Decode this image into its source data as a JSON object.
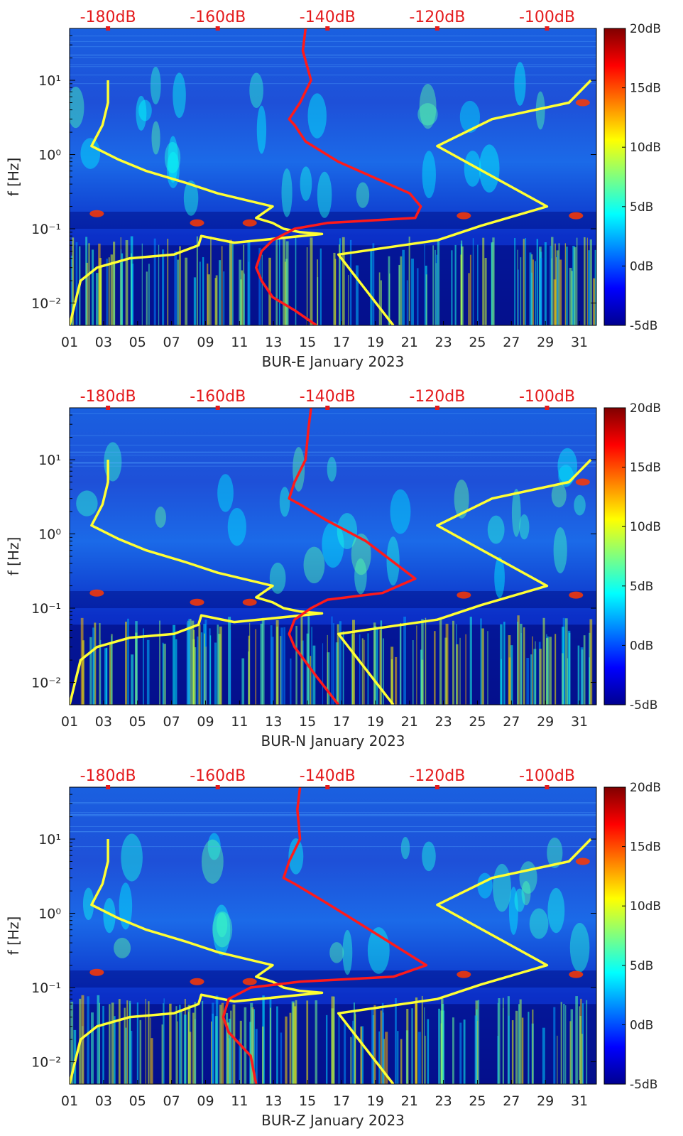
{
  "chart_data": [
    {
      "type": "heatmap",
      "xlabel": "BUR-E January 2023",
      "ylabel": "f [Hz]",
      "x_ticks": [
        "01",
        "03",
        "05",
        "07",
        "09",
        "11",
        "13",
        "15",
        "17",
        "19",
        "21",
        "23",
        "25",
        "27",
        "29",
        "31"
      ],
      "y_ticks": [
        "10⁻²",
        "10⁻¹",
        "10⁰",
        "10¹"
      ],
      "y_scale": "log",
      "x_range": [
        1,
        32
      ],
      "y_range": [
        0.005,
        50
      ],
      "top_axis_ticks": [
        "-180dB",
        "-160dB",
        "-140dB",
        "-120dB",
        "-100dB"
      ],
      "top_axis_range_db": [
        -187,
        -91
      ],
      "colorbar": {
        "ticks": [
          "-5dB",
          "0dB",
          "5dB",
          "10dB",
          "15dB",
          "20dB"
        ],
        "range_db": [
          -5,
          20
        ],
        "colormap": "jet"
      },
      "series": [
        {
          "color": "#ffff33",
          "x_db": [
            -180,
            -180,
            -181,
            -183,
            -178,
            -173,
            -166,
            -160,
            -150,
            -153,
            -150,
            -148,
            -145,
            -141,
            -157,
            -163,
            -163.5,
            -168,
            -176,
            -182,
            -185,
            -186,
            -187
          ],
          "y_hz": [
            10,
            5,
            2.5,
            1.3,
            0.85,
            0.6,
            0.42,
            0.3,
            0.2,
            0.14,
            0.12,
            0.1,
            0.09,
            0.085,
            0.065,
            0.08,
            0.06,
            0.045,
            0.04,
            0.03,
            0.02,
            0.01,
            0.005
          ]
        },
        {
          "color": "#ffff33",
          "x_db": [
            -92,
            -96,
            -110,
            -120,
            -100,
            -112,
            -120,
            -138,
            -128
          ],
          "y_hz": [
            10,
            5,
            3,
            1.3,
            0.2,
            0.11,
            0.07,
            0.045,
            0.005
          ]
        },
        {
          "color": "#ff1a1a",
          "x_db": [
            -144,
            -144.5,
            -143,
            -145,
            -147,
            -146,
            -144,
            -138,
            -125,
            -123,
            -124,
            -140,
            -146,
            -150,
            -152,
            -153,
            -152,
            -150,
            -146,
            -142
          ],
          "y_hz": [
            50,
            25,
            10,
            5,
            3,
            2.5,
            1.5,
            0.8,
            0.3,
            0.2,
            0.14,
            0.12,
            0.1,
            0.07,
            0.05,
            0.03,
            0.02,
            0.012,
            0.008,
            0.005
          ]
        }
      ]
    },
    {
      "type": "heatmap",
      "xlabel": "BUR-N January 2023",
      "ylabel": "f [Hz]",
      "x_ticks": [
        "01",
        "03",
        "05",
        "07",
        "09",
        "11",
        "13",
        "15",
        "17",
        "19",
        "21",
        "23",
        "25",
        "27",
        "29",
        "31"
      ],
      "y_ticks": [
        "10⁻²",
        "10⁻¹",
        "10⁰",
        "10¹"
      ],
      "y_scale": "log",
      "x_range": [
        1,
        32
      ],
      "y_range": [
        0.005,
        50
      ],
      "top_axis_ticks": [
        "-180dB",
        "-160dB",
        "-140dB",
        "-120dB",
        "-100dB"
      ],
      "top_axis_range_db": [
        -187,
        -91
      ],
      "colorbar": {
        "ticks": [
          "-5dB",
          "0dB",
          "5dB",
          "10dB",
          "15dB",
          "20dB"
        ],
        "range_db": [
          -5,
          20
        ],
        "colormap": "jet"
      },
      "series": [
        {
          "color": "#ffff33",
          "x_db": [
            -180,
            -180,
            -181,
            -183,
            -178,
            -173,
            -166,
            -160,
            -150,
            -153,
            -150,
            -148,
            -145,
            -141,
            -157,
            -163,
            -163.5,
            -168,
            -176,
            -182,
            -185,
            -186,
            -187
          ],
          "y_hz": [
            10,
            5,
            2.5,
            1.3,
            0.85,
            0.6,
            0.42,
            0.3,
            0.2,
            0.14,
            0.12,
            0.1,
            0.09,
            0.085,
            0.065,
            0.08,
            0.06,
            0.045,
            0.04,
            0.03,
            0.02,
            0.01,
            0.005
          ]
        },
        {
          "color": "#ffff33",
          "x_db": [
            -92,
            -96,
            -110,
            -120,
            -100,
            -112,
            -120,
            -138,
            -128
          ],
          "y_hz": [
            10,
            5,
            3,
            1.3,
            0.2,
            0.11,
            0.07,
            0.045,
            0.005
          ]
        },
        {
          "color": "#ff1a1a",
          "x_db": [
            -143,
            -143.5,
            -144,
            -146,
            -147,
            -145,
            -140,
            -133,
            -124,
            -130,
            -140,
            -143,
            -146,
            -147,
            -146,
            -142,
            -138
          ],
          "y_hz": [
            50,
            25,
            10,
            5,
            3,
            2.5,
            1.5,
            0.8,
            0.25,
            0.16,
            0.13,
            0.1,
            0.07,
            0.045,
            0.03,
            0.012,
            0.005
          ]
        }
      ]
    },
    {
      "type": "heatmap",
      "xlabel": "BUR-Z January 2023",
      "ylabel": "f [Hz]",
      "x_ticks": [
        "01",
        "03",
        "05",
        "07",
        "09",
        "11",
        "13",
        "15",
        "17",
        "19",
        "21",
        "23",
        "25",
        "27",
        "29",
        "31"
      ],
      "y_ticks": [
        "10⁻²",
        "10⁻¹",
        "10⁰",
        "10¹"
      ],
      "y_scale": "log",
      "x_range": [
        1,
        32
      ],
      "y_range": [
        0.005,
        50
      ],
      "top_axis_ticks": [
        "-180dB",
        "-160dB",
        "-140dB",
        "-120dB",
        "-100dB"
      ],
      "top_axis_range_db": [
        -187,
        -91
      ],
      "colorbar": {
        "ticks": [
          "-5dB",
          "0dB",
          "5dB",
          "10dB",
          "15dB",
          "20dB"
        ],
        "range_db": [
          -5,
          20
        ],
        "colormap": "jet"
      },
      "series": [
        {
          "color": "#ffff33",
          "x_db": [
            -180,
            -180,
            -181,
            -183,
            -178,
            -173,
            -166,
            -160,
            -150,
            -153,
            -150,
            -148,
            -145,
            -141,
            -157,
            -163,
            -163.5,
            -168,
            -176,
            -182,
            -185,
            -186,
            -187
          ],
          "y_hz": [
            10,
            5,
            2.5,
            1.3,
            0.85,
            0.6,
            0.42,
            0.3,
            0.2,
            0.14,
            0.12,
            0.1,
            0.09,
            0.085,
            0.065,
            0.08,
            0.06,
            0.045,
            0.04,
            0.03,
            0.02,
            0.01,
            0.005
          ]
        },
        {
          "color": "#ffff33",
          "x_db": [
            -92,
            -96,
            -110,
            -120,
            -100,
            -112,
            -120,
            -138,
            -128
          ],
          "y_hz": [
            10,
            5,
            3,
            1.3,
            0.2,
            0.11,
            0.07,
            0.045,
            0.005
          ]
        },
        {
          "color": "#ff1a1a",
          "x_db": [
            -145,
            -145.5,
            -145,
            -147,
            -148,
            -146,
            -141,
            -135,
            -122,
            -128,
            -145,
            -154,
            -158,
            -159,
            -158,
            -154,
            -153
          ],
          "y_hz": [
            50,
            25,
            10,
            5,
            3,
            2.5,
            1.5,
            0.8,
            0.2,
            0.14,
            0.12,
            0.1,
            0.07,
            0.04,
            0.025,
            0.012,
            0.005
          ]
        }
      ]
    }
  ]
}
